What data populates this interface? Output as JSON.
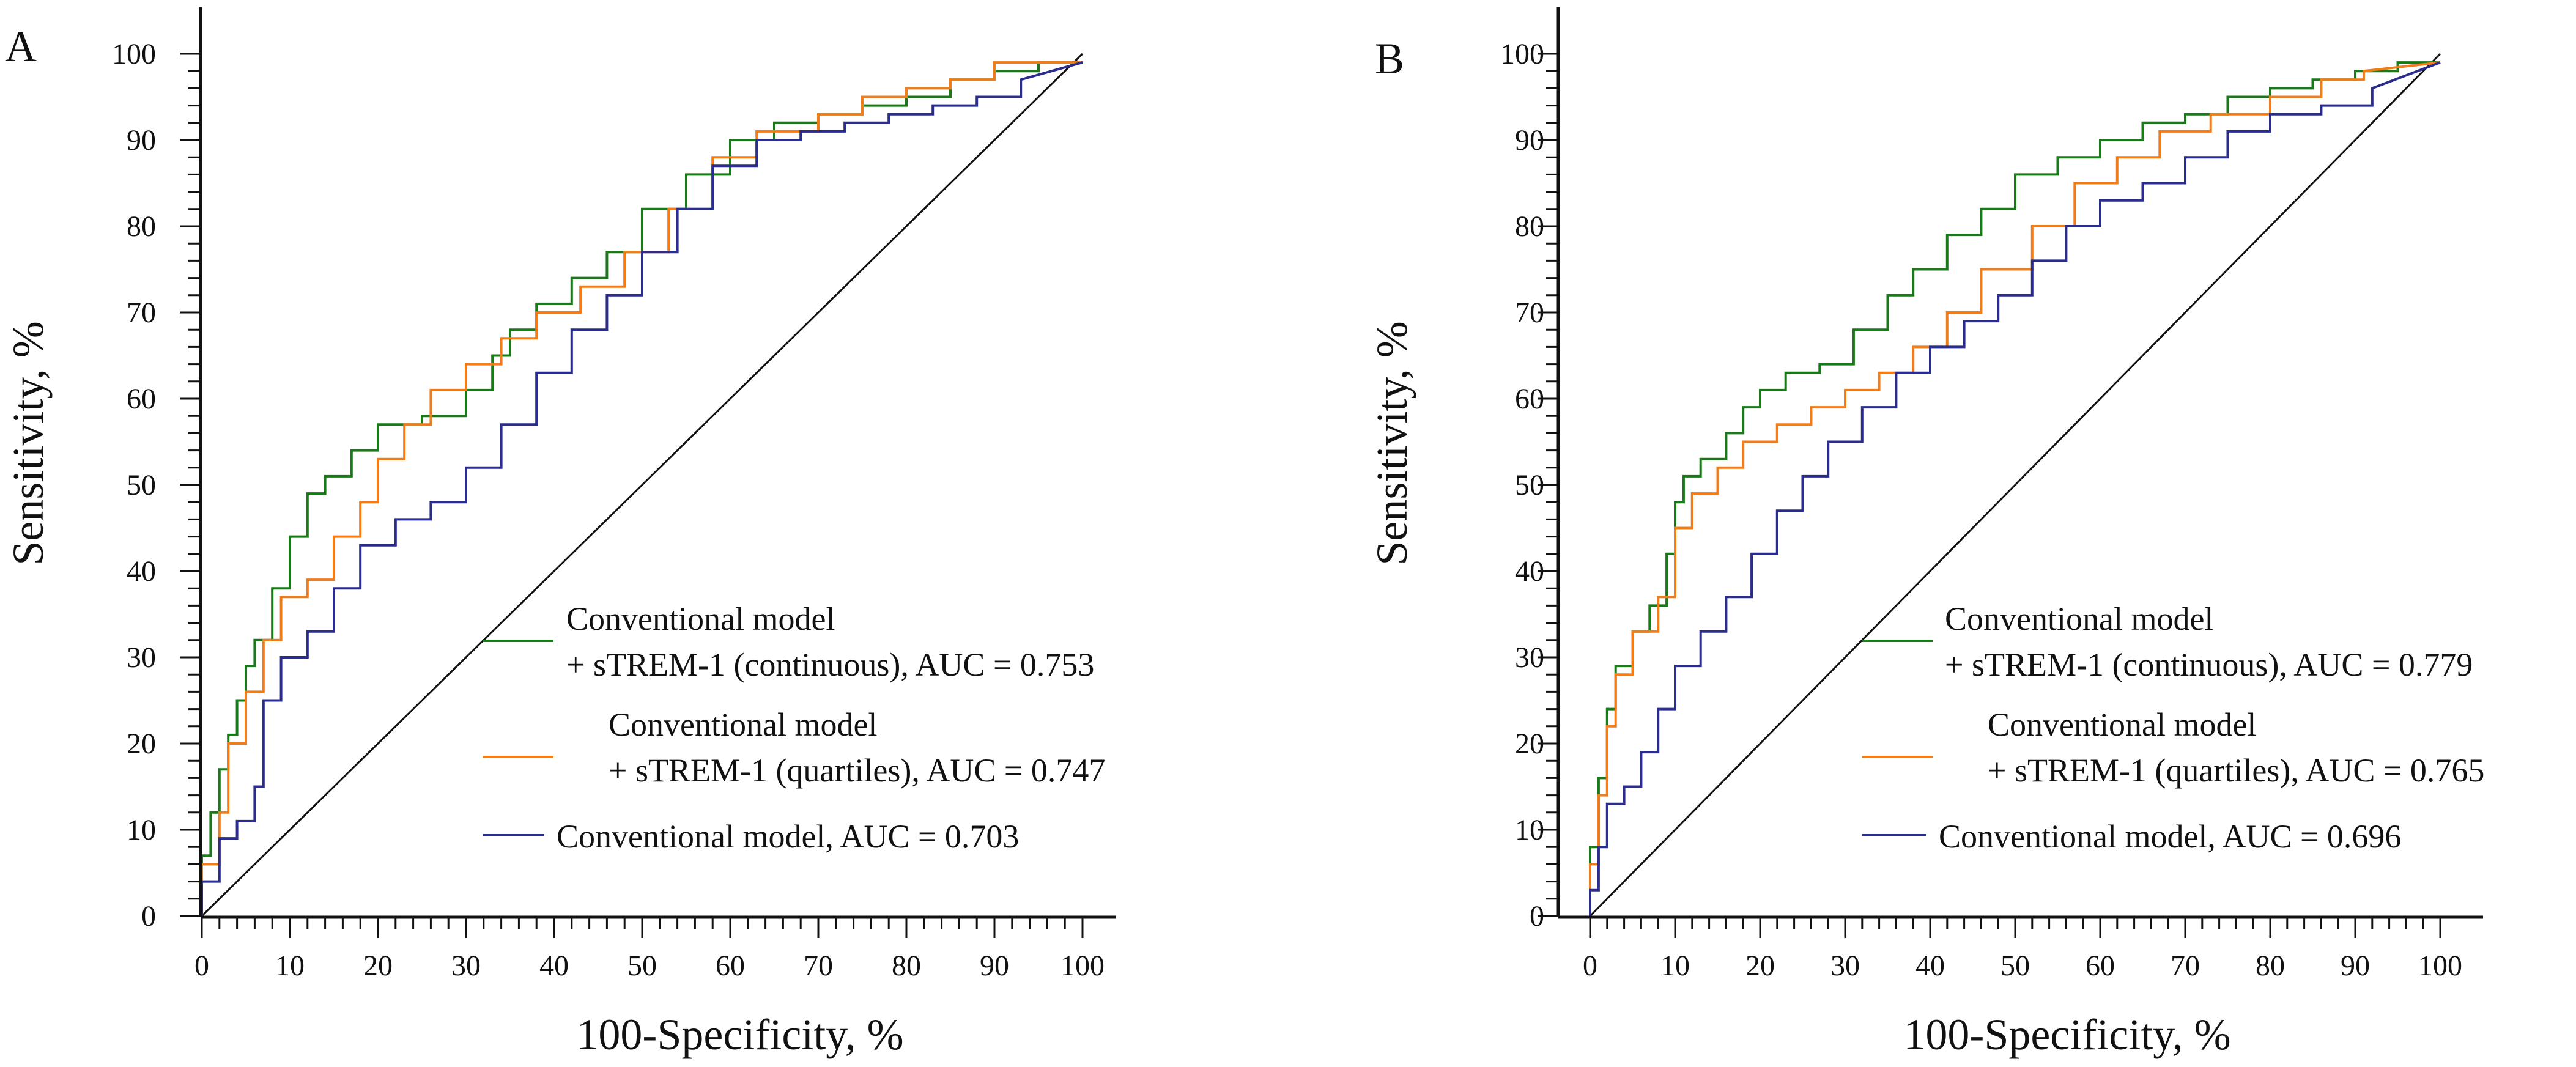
{
  "chart_data": [
    {
      "type": "line",
      "panel": "A",
      "xlabel": "100-Specificity, %",
      "ylabel": "Sensitivity, %",
      "xlim": [
        0,
        100
      ],
      "ylim": [
        0,
        100
      ],
      "xticks": [
        0,
        10,
        20,
        30,
        40,
        50,
        60,
        70,
        80,
        90,
        100
      ],
      "yticks": [
        0,
        10,
        20,
        30,
        40,
        50,
        60,
        70,
        80,
        90,
        100
      ],
      "legend_position": "bottom-right",
      "reference_line": {
        "from": [
          0,
          0
        ],
        "to": [
          100,
          100
        ]
      },
      "series": [
        {
          "name": "green",
          "label_line1": "Conventional model",
          "label_line2": "+ sTREM-1 (continuous), AUC = 0.753",
          "color": "#1a7a1a",
          "x": [
            0,
            0,
            1,
            1,
            2,
            2,
            3,
            3,
            4,
            4,
            5,
            5,
            6,
            6,
            8,
            8,
            10,
            10,
            12,
            12,
            14,
            14,
            17,
            17,
            20,
            20,
            25,
            25,
            30,
            30,
            33,
            33,
            35,
            35,
            38,
            38,
            42,
            42,
            46,
            46,
            50,
            50,
            55,
            55,
            60,
            60,
            65,
            65,
            70,
            70,
            75,
            75,
            80,
            80,
            85,
            85,
            90,
            90,
            95,
            95,
            100
          ],
          "y": [
            0,
            7,
            7,
            12,
            12,
            17,
            17,
            21,
            21,
            25,
            25,
            29,
            29,
            32,
            32,
            38,
            38,
            44,
            44,
            49,
            49,
            51,
            51,
            54,
            54,
            57,
            57,
            58,
            58,
            61,
            61,
            65,
            65,
            68,
            68,
            71,
            71,
            74,
            74,
            77,
            77,
            82,
            82,
            86,
            86,
            90,
            90,
            92,
            92,
            93,
            93,
            94,
            94,
            95,
            95,
            97,
            97,
            98,
            98,
            99,
            99
          ]
        },
        {
          "name": "orange",
          "label_line1": "Conventional model",
          "label_line2": "+ sTREM-1 (quartiles), AUC = 0.747",
          "color": "#f07d1a",
          "x": [
            0,
            0,
            2,
            2,
            3,
            3,
            5,
            5,
            7,
            7,
            9,
            9,
            12,
            12,
            15,
            15,
            18,
            18,
            20,
            20,
            23,
            23,
            26,
            26,
            30,
            30,
            34,
            34,
            38,
            38,
            43,
            43,
            48,
            48,
            53,
            53,
            58,
            58,
            63,
            63,
            70,
            70,
            75,
            75,
            80,
            80,
            85,
            85,
            90,
            90,
            100
          ],
          "y": [
            0,
            6,
            6,
            12,
            12,
            20,
            20,
            26,
            26,
            32,
            32,
            37,
            37,
            39,
            39,
            44,
            44,
            48,
            48,
            53,
            53,
            57,
            57,
            61,
            61,
            64,
            64,
            67,
            67,
            70,
            70,
            73,
            73,
            77,
            77,
            82,
            82,
            88,
            88,
            91,
            91,
            93,
            93,
            95,
            95,
            96,
            96,
            97,
            97,
            99,
            99
          ]
        },
        {
          "name": "blue",
          "label_line1": "Conventional model, AUC = 0.703",
          "label_line2": "",
          "color": "#2b2d8c",
          "x": [
            0,
            0,
            2,
            2,
            4,
            4,
            6,
            6,
            7,
            7,
            9,
            9,
            12,
            12,
            15,
            15,
            18,
            18,
            22,
            22,
            26,
            26,
            30,
            30,
            34,
            34,
            38,
            38,
            42,
            42,
            46,
            46,
            50,
            50,
            54,
            54,
            58,
            58,
            63,
            63,
            68,
            68,
            73,
            73,
            78,
            78,
            83,
            83,
            88,
            88,
            93,
            93,
            100
          ],
          "y": [
            0,
            4,
            4,
            9,
            9,
            11,
            11,
            15,
            15,
            25,
            25,
            30,
            30,
            33,
            33,
            38,
            38,
            43,
            43,
            46,
            46,
            48,
            48,
            52,
            52,
            57,
            57,
            63,
            63,
            68,
            68,
            72,
            72,
            77,
            77,
            82,
            82,
            87,
            87,
            90,
            90,
            91,
            91,
            92,
            92,
            93,
            93,
            94,
            94,
            95,
            95,
            97,
            99
          ]
        }
      ]
    },
    {
      "type": "line",
      "panel": "B",
      "xlabel": "100-Specificity, %",
      "ylabel": "Sensitivity, %",
      "xlim": [
        0,
        100
      ],
      "ylim": [
        0,
        100
      ],
      "xticks": [
        0,
        10,
        20,
        30,
        40,
        50,
        60,
        70,
        80,
        90,
        100
      ],
      "yticks": [
        0,
        10,
        20,
        30,
        40,
        50,
        60,
        70,
        80,
        90,
        100
      ],
      "legend_position": "bottom-right",
      "reference_line": {
        "from": [
          0,
          0
        ],
        "to": [
          100,
          100
        ]
      },
      "series": [
        {
          "name": "green",
          "label_line1": "Conventional model",
          "label_line2": "+ sTREM-1 (continuous), AUC = 0.779",
          "color": "#1a7a1a",
          "x": [
            0,
            0,
            1,
            1,
            2,
            2,
            3,
            3,
            5,
            5,
            7,
            7,
            9,
            9,
            10,
            10,
            11,
            11,
            13,
            13,
            16,
            16,
            18,
            18,
            20,
            20,
            23,
            23,
            27,
            27,
            31,
            31,
            35,
            35,
            38,
            38,
            42,
            42,
            46,
            46,
            50,
            50,
            55,
            55,
            60,
            60,
            65,
            65,
            70,
            70,
            75,
            75,
            80,
            80,
            85,
            85,
            90,
            90,
            95,
            95,
            100
          ],
          "y": [
            0,
            8,
            8,
            16,
            16,
            24,
            24,
            29,
            29,
            33,
            33,
            36,
            36,
            42,
            42,
            48,
            48,
            51,
            51,
            53,
            53,
            56,
            56,
            59,
            59,
            61,
            61,
            63,
            63,
            64,
            64,
            68,
            68,
            72,
            72,
            75,
            75,
            79,
            79,
            82,
            82,
            86,
            86,
            88,
            88,
            90,
            90,
            92,
            92,
            93,
            93,
            95,
            95,
            96,
            96,
            97,
            97,
            98,
            98,
            99,
            99
          ]
        },
        {
          "name": "orange",
          "label_line1": "Conventional model",
          "label_line2": "+ sTREM-1 (quartiles), AUC = 0.765",
          "color": "#f07d1a",
          "x": [
            0,
            0,
            1,
            1,
            2,
            2,
            3,
            3,
            5,
            5,
            8,
            8,
            10,
            10,
            12,
            12,
            15,
            15,
            18,
            18,
            22,
            22,
            26,
            26,
            30,
            30,
            34,
            34,
            38,
            38,
            42,
            42,
            46,
            46,
            52,
            52,
            57,
            57,
            62,
            62,
            67,
            67,
            73,
            73,
            80,
            80,
            86,
            86,
            91,
            91,
            100
          ],
          "y": [
            0,
            6,
            6,
            14,
            14,
            22,
            22,
            28,
            28,
            33,
            33,
            37,
            37,
            45,
            45,
            49,
            49,
            52,
            52,
            55,
            55,
            57,
            57,
            59,
            59,
            61,
            61,
            63,
            63,
            66,
            66,
            70,
            70,
            75,
            75,
            80,
            80,
            85,
            85,
            88,
            88,
            91,
            91,
            93,
            93,
            95,
            95,
            97,
            97,
            98,
            99
          ]
        },
        {
          "name": "blue",
          "label_line1": "Conventional model, AUC = 0.696",
          "label_line2": "",
          "color": "#2b2d8c",
          "x": [
            0,
            0,
            1,
            1,
            2,
            2,
            4,
            4,
            6,
            6,
            8,
            8,
            10,
            10,
            13,
            13,
            16,
            16,
            19,
            19,
            22,
            22,
            25,
            25,
            28,
            28,
            32,
            32,
            36,
            36,
            40,
            40,
            44,
            44,
            48,
            48,
            52,
            52,
            56,
            56,
            60,
            60,
            65,
            65,
            70,
            70,
            75,
            75,
            80,
            80,
            86,
            86,
            92,
            92,
            100
          ],
          "y": [
            0,
            3,
            3,
            8,
            8,
            13,
            13,
            15,
            15,
            19,
            19,
            24,
            24,
            29,
            29,
            33,
            33,
            37,
            37,
            42,
            42,
            47,
            47,
            51,
            51,
            55,
            55,
            59,
            59,
            63,
            63,
            66,
            66,
            69,
            69,
            72,
            72,
            76,
            76,
            80,
            80,
            83,
            83,
            85,
            85,
            88,
            88,
            91,
            91,
            93,
            93,
            94,
            94,
            96,
            99
          ]
        }
      ]
    }
  ]
}
